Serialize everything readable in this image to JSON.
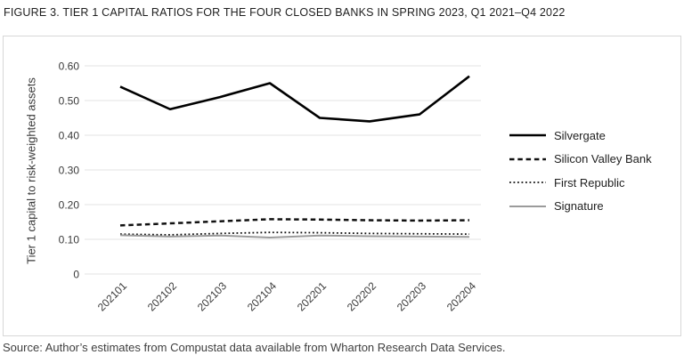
{
  "figure": {
    "title": "FIGURE 3. TIER 1 CAPITAL RATIOS FOR THE FOUR CLOSED BANKS IN SPRING 2023, Q1 2021–Q4 2022",
    "source": "Source: Author’s estimates from Compustat data available from Wharton Research Data Services."
  },
  "chart_data": {
    "type": "line",
    "title": "Tier 1 capital ratios for the four closed banks, Q1 2021 - Q4 2022",
    "ylabel": "Tier 1 capital to risk-weighted assets",
    "xlabel": "",
    "categories": [
      "202101",
      "202102",
      "202103",
      "202104",
      "202201",
      "202202",
      "202203",
      "202204"
    ],
    "ylim": [
      0,
      0.6
    ],
    "ytick_interval": 0.1,
    "ytick_labels": [
      "0",
      "0.10",
      "0.20",
      "0.30",
      "0.40",
      "0.50",
      "0.60"
    ],
    "grid": true,
    "legend_position": "right",
    "series": [
      {
        "name": "Silvergate",
        "color": "#000000",
        "style": "solid",
        "width": 2.6,
        "values": [
          0.54,
          0.475,
          0.51,
          0.55,
          0.45,
          0.44,
          0.46,
          0.57
        ]
      },
      {
        "name": "Silicon Valley Bank",
        "color": "#111111",
        "style": "dashed",
        "width": 2.5,
        "values": [
          0.14,
          0.146,
          0.152,
          0.158,
          0.157,
          0.155,
          0.154,
          0.155
        ]
      },
      {
        "name": "First Republic",
        "color": "#111111",
        "style": "dotted",
        "width": 1.8,
        "values": [
          0.115,
          0.113,
          0.117,
          0.12,
          0.119,
          0.117,
          0.116,
          0.115
        ]
      },
      {
        "name": "Signature",
        "color": "#9b9b9b",
        "style": "solid",
        "width": 2.0,
        "values": [
          0.112,
          0.108,
          0.111,
          0.105,
          0.111,
          0.109,
          0.108,
          0.107
        ]
      }
    ]
  },
  "colors": {
    "grid": "#e3e3e3",
    "panel_border": "#d7d7d7",
    "title_text": "#1e1e1e",
    "axis_text": "#3a3a3a"
  }
}
